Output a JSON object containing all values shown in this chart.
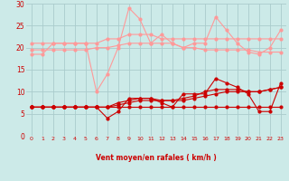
{
  "xlabel": "Vent moyen/en rafales ( km/h )",
  "x": [
    0,
    1,
    2,
    3,
    4,
    5,
    6,
    7,
    8,
    9,
    10,
    11,
    12,
    13,
    14,
    15,
    16,
    17,
    18,
    19,
    20,
    21,
    22,
    23
  ],
  "light_pink_line1": [
    18.5,
    18.5,
    21,
    21,
    21,
    21,
    10,
    14,
    20,
    29,
    26.5,
    21,
    23,
    21,
    20,
    21,
    21,
    27,
    24,
    21,
    19,
    18.5,
    20,
    24
  ],
  "light_pink_line2": [
    21,
    21,
    21,
    21,
    21,
    21,
    21,
    22,
    22,
    23,
    23,
    23,
    22,
    22,
    22,
    22,
    22,
    22,
    22,
    22,
    22,
    22,
    22,
    22
  ],
  "light_pink_line3": [
    19.5,
    19.5,
    19.5,
    19.5,
    19.5,
    19.5,
    20,
    20,
    20.5,
    21,
    21,
    21,
    21,
    21,
    20,
    20,
    19.5,
    19.5,
    19.5,
    19.5,
    19.5,
    19,
    19,
    19
  ],
  "dark_red_line1": [
    6.5,
    6.5,
    6.5,
    6.5,
    6.5,
    6.5,
    6.5,
    4,
    5.5,
    8.5,
    8.5,
    8.5,
    7.5,
    6.5,
    9.5,
    9.5,
    9.5,
    13,
    12,
    11,
    9.5,
    5.5,
    5.5,
    12
  ],
  "dark_red_line2": [
    6.5,
    6.5,
    6.5,
    6.5,
    6.5,
    6.5,
    6.5,
    6.5,
    7.5,
    8,
    8.5,
    8.5,
    8,
    8,
    8.5,
    9,
    10,
    10.5,
    10.5,
    10.5,
    10,
    10,
    10.5,
    11
  ],
  "dark_red_line3": [
    6.5,
    6.5,
    6.5,
    6.5,
    6.5,
    6.5,
    6.5,
    6.5,
    7,
    7.5,
    8,
    8,
    8,
    8,
    8,
    8.5,
    9,
    9.5,
    10,
    10,
    10,
    10,
    10.5,
    11
  ],
  "dark_red_line4": [
    6.5,
    6.5,
    6.5,
    6.5,
    6.5,
    6.5,
    6.5,
    6.5,
    6.5,
    6.5,
    6.5,
    6.5,
    6.5,
    6.5,
    6.5,
    6.5,
    6.5,
    6.5,
    6.5,
    6.5,
    6.5,
    6.5,
    6.5,
    6.5
  ],
  "bg_color": "#cceae8",
  "grid_color": "#aacccc",
  "light_pink_color": "#ff9999",
  "dark_red_color": "#cc0000",
  "arrow_color": "#ff3333",
  "wind_arrows": [
    270,
    270,
    270,
    270,
    225,
    210,
    210,
    225,
    270,
    300,
    270,
    315,
    300,
    270,
    270,
    225,
    210,
    225,
    270,
    270,
    270,
    315,
    0,
    0
  ],
  "ylim": [
    0,
    30
  ],
  "yticks": [
    0,
    5,
    10,
    15,
    20,
    25,
    30
  ]
}
